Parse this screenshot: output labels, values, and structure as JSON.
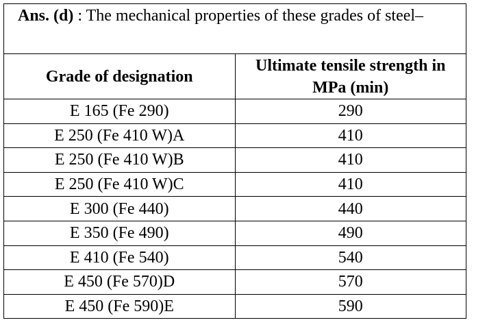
{
  "answer": {
    "label": "Ans. (d)",
    "text": ": The mechanical properties of these grades of steel–"
  },
  "table": {
    "columns": [
      "Grade of designation",
      "Ultimate tensile strength in MPa (min)"
    ],
    "rows": [
      [
        "E 165 (Fe 290)",
        290
      ],
      [
        "E 250 (Fe 410 W)A",
        410
      ],
      [
        "E 250 (Fe 410 W)B",
        410
      ],
      [
        "E 250 (Fe 410 W)C",
        410
      ],
      [
        "E 300 (Fe 440)",
        440
      ],
      [
        "E 350 (Fe 490)",
        490
      ],
      [
        "E 410 (Fe 540)",
        540
      ],
      [
        "E 450 (Fe 570)D",
        570
      ],
      [
        "E 450 (Fe 590)E",
        590
      ]
    ]
  }
}
